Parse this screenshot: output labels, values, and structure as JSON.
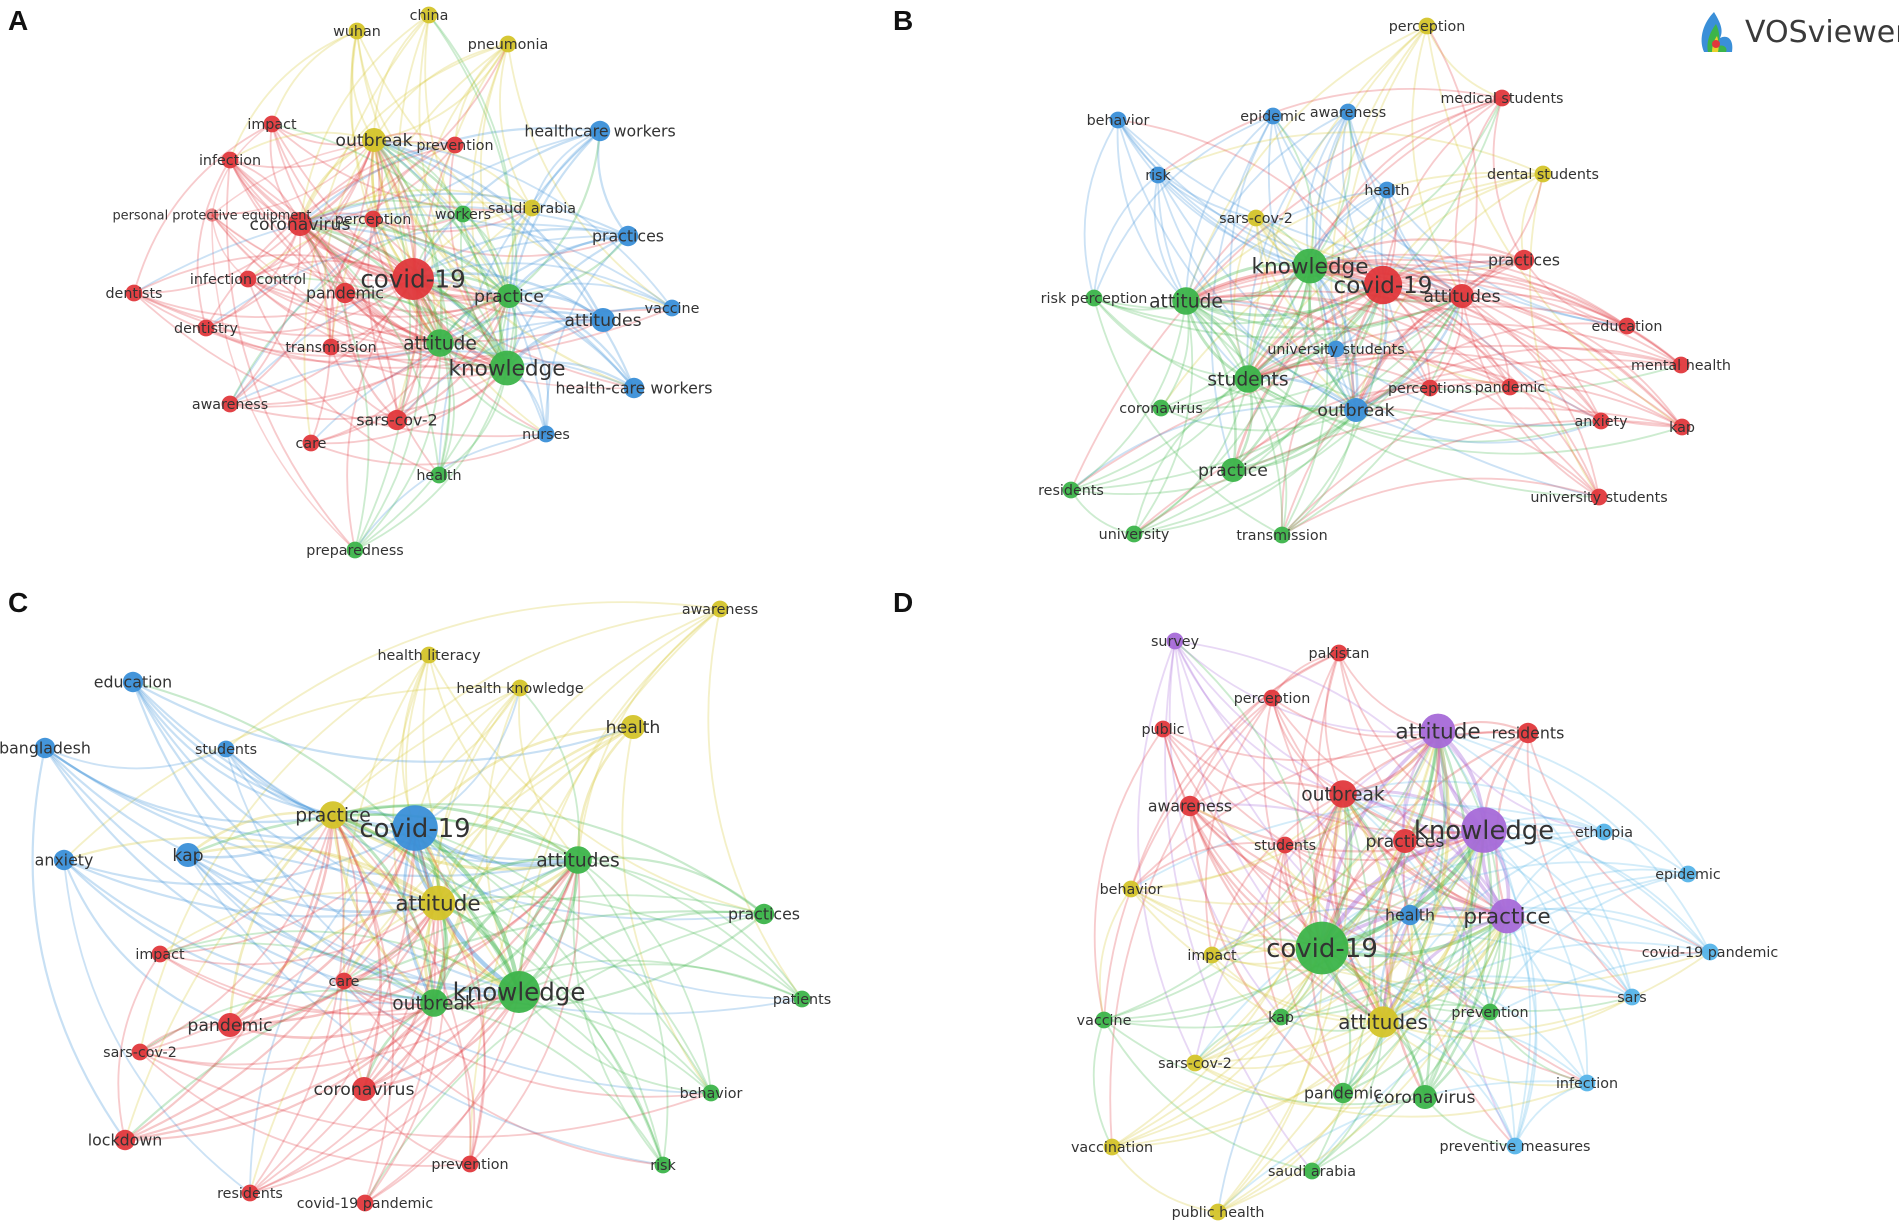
{
  "brand": {
    "name": "VOSviewer",
    "icon": "vosviewer-logo-icon"
  },
  "colors": {
    "red": "#e0383c",
    "green": "#3cb44a",
    "blue": "#3a8fd8",
    "yellow": "#d4c42a",
    "purple": "#a66ad8",
    "cyan": "#56b4e9"
  },
  "panels": [
    {
      "id": "A",
      "letter": "A",
      "nodes": [
        {
          "label": "wuhan",
          "c": "yellow",
          "w": 3
        },
        {
          "label": "china",
          "c": "yellow",
          "w": 3
        },
        {
          "label": "pneumonia",
          "c": "yellow",
          "w": 3
        },
        {
          "label": "impact",
          "c": "red",
          "w": 3
        },
        {
          "label": "outbreak",
          "c": "yellow",
          "w": 5
        },
        {
          "label": "prevention",
          "c": "red",
          "w": 3
        },
        {
          "label": "healthcare workers",
          "c": "blue",
          "w": 4
        },
        {
          "label": "infection",
          "c": "red",
          "w": 3
        },
        {
          "label": "personal protective equipment",
          "c": "red",
          "w": 2,
          "faint": true
        },
        {
          "label": "coronavirus",
          "c": "red",
          "w": 5
        },
        {
          "label": "perception",
          "c": "red",
          "w": 3
        },
        {
          "label": "workers",
          "c": "green",
          "w": 3
        },
        {
          "label": "saudi arabia",
          "c": "yellow",
          "w": 3
        },
        {
          "label": "practices",
          "c": "blue",
          "w": 4
        },
        {
          "label": "dentists",
          "c": "red",
          "w": 3
        },
        {
          "label": "infection control",
          "c": "red",
          "w": 3
        },
        {
          "label": "covid-19",
          "c": "red",
          "w": 10
        },
        {
          "label": "pandemic",
          "c": "red",
          "w": 4
        },
        {
          "label": "practice",
          "c": "green",
          "w": 5
        },
        {
          "label": "vaccine",
          "c": "blue",
          "w": 3
        },
        {
          "label": "dentistry",
          "c": "red",
          "w": 3
        },
        {
          "label": "attitudes",
          "c": "blue",
          "w": 5
        },
        {
          "label": "transmission",
          "c": "red",
          "w": 3
        },
        {
          "label": "attitude",
          "c": "green",
          "w": 6
        },
        {
          "label": "knowledge",
          "c": "green",
          "w": 8
        },
        {
          "label": "health-care workers",
          "c": "blue",
          "w": 4
        },
        {
          "label": "awareness",
          "c": "red",
          "w": 3
        },
        {
          "label": "sars-cov-2",
          "c": "red",
          "w": 4
        },
        {
          "label": "care",
          "c": "red",
          "w": 3
        },
        {
          "label": "nurses",
          "c": "blue",
          "w": 3
        },
        {
          "label": "health",
          "c": "green",
          "w": 3
        },
        {
          "label": "preparedness",
          "c": "green",
          "w": 3
        }
      ]
    },
    {
      "id": "B",
      "letter": "B",
      "nodes": [
        {
          "label": "perception",
          "c": "yellow",
          "w": 3
        },
        {
          "label": "medical students",
          "c": "red",
          "w": 3
        },
        {
          "label": "behavior",
          "c": "blue",
          "w": 3
        },
        {
          "label": "epidemic",
          "c": "blue",
          "w": 3
        },
        {
          "label": "awareness",
          "c": "blue",
          "w": 3
        },
        {
          "label": "dental students",
          "c": "yellow",
          "w": 3
        },
        {
          "label": "risk",
          "c": "blue",
          "w": 3
        },
        {
          "label": "health",
          "c": "blue",
          "w": 3
        },
        {
          "label": "sars-cov-2",
          "c": "yellow",
          "w": 3
        },
        {
          "label": "practices",
          "c": "red",
          "w": 4
        },
        {
          "label": "knowledge",
          "c": "green",
          "w": 8
        },
        {
          "label": "covid-19",
          "c": "red",
          "w": 9
        },
        {
          "label": "attitudes",
          "c": "red",
          "w": 5
        },
        {
          "label": "risk perception",
          "c": "green",
          "w": 3
        },
        {
          "label": "attitude",
          "c": "green",
          "w": 6
        },
        {
          "label": "education",
          "c": "red",
          "w": 3
        },
        {
          "label": "mental health",
          "c": "red",
          "w": 3
        },
        {
          "label": "university students",
          "c": "blue",
          "w": 3
        },
        {
          "label": "students",
          "c": "green",
          "w": 6
        },
        {
          "label": "perceptions",
          "c": "red",
          "w": 3
        },
        {
          "label": "pandemic",
          "c": "red",
          "w": 3
        },
        {
          "label": "coronavirus",
          "c": "green",
          "w": 3
        },
        {
          "label": "outbreak",
          "c": "blue",
          "w": 5
        },
        {
          "label": "anxiety",
          "c": "red",
          "w": 3
        },
        {
          "label": "kap",
          "c": "red",
          "w": 3
        },
        {
          "label": "practice",
          "c": "green",
          "w": 5
        },
        {
          "label": "residents",
          "c": "green",
          "w": 3
        },
        {
          "label": "university students",
          "c": "red",
          "w": 3
        },
        {
          "label": "university",
          "c": "green",
          "w": 3
        },
        {
          "label": "transmission",
          "c": "green",
          "w": 3
        }
      ]
    },
    {
      "id": "C",
      "letter": "C",
      "nodes": [
        {
          "label": "awareness",
          "c": "yellow",
          "w": 3
        },
        {
          "label": "health literacy",
          "c": "yellow",
          "w": 3
        },
        {
          "label": "education",
          "c": "blue",
          "w": 4
        },
        {
          "label": "health knowledge",
          "c": "yellow",
          "w": 3
        },
        {
          "label": "health",
          "c": "yellow",
          "w": 5
        },
        {
          "label": "bangladesh",
          "c": "blue",
          "w": 4
        },
        {
          "label": "students",
          "c": "blue",
          "w": 3
        },
        {
          "label": "practice",
          "c": "yellow",
          "w": 6
        },
        {
          "label": "covid-19",
          "c": "blue",
          "w": 11
        },
        {
          "label": "anxiety",
          "c": "blue",
          "w": 4
        },
        {
          "label": "kap",
          "c": "blue",
          "w": 5
        },
        {
          "label": "attitudes",
          "c": "green",
          "w": 6
        },
        {
          "label": "attitude",
          "c": "yellow",
          "w": 8
        },
        {
          "label": "practices",
          "c": "green",
          "w": 4
        },
        {
          "label": "impact",
          "c": "red",
          "w": 3
        },
        {
          "label": "care",
          "c": "red",
          "w": 3
        },
        {
          "label": "outbreak",
          "c": "green",
          "w": 6
        },
        {
          "label": "knowledge",
          "c": "green",
          "w": 10
        },
        {
          "label": "patients",
          "c": "green",
          "w": 3
        },
        {
          "label": "pandemic",
          "c": "red",
          "w": 5
        },
        {
          "label": "sars-cov-2",
          "c": "red",
          "w": 3
        },
        {
          "label": "coronavirus",
          "c": "red",
          "w": 5
        },
        {
          "label": "behavior",
          "c": "green",
          "w": 3
        },
        {
          "label": "lockdown",
          "c": "red",
          "w": 4
        },
        {
          "label": "prevention",
          "c": "red",
          "w": 3
        },
        {
          "label": "risk",
          "c": "green",
          "w": 3
        },
        {
          "label": "residents",
          "c": "red",
          "w": 3
        },
        {
          "label": "covid-19 pandemic",
          "c": "red",
          "w": 3
        }
      ]
    },
    {
      "id": "D",
      "letter": "D",
      "nodes": [
        {
          "label": "survey",
          "c": "purple",
          "w": 3
        },
        {
          "label": "pakistan",
          "c": "red",
          "w": 3
        },
        {
          "label": "perception",
          "c": "red",
          "w": 3
        },
        {
          "label": "public",
          "c": "red",
          "w": 3
        },
        {
          "label": "attitude",
          "c": "purple",
          "w": 8
        },
        {
          "label": "residents",
          "c": "red",
          "w": 4
        },
        {
          "label": "awareness",
          "c": "red",
          "w": 4
        },
        {
          "label": "outbreak",
          "c": "red",
          "w": 6
        },
        {
          "label": "knowledge",
          "c": "purple",
          "w": 11
        },
        {
          "label": "ethiopia",
          "c": "cyan",
          "w": 3
        },
        {
          "label": "students",
          "c": "red",
          "w": 3
        },
        {
          "label": "practices",
          "c": "red",
          "w": 5
        },
        {
          "label": "epidemic",
          "c": "cyan",
          "w": 3
        },
        {
          "label": "behavior",
          "c": "yellow",
          "w": 3
        },
        {
          "label": "health",
          "c": "blue",
          "w": 4
        },
        {
          "label": "practice",
          "c": "purple",
          "w": 8
        },
        {
          "label": "covid-19",
          "c": "green",
          "w": 13
        },
        {
          "label": "impact",
          "c": "yellow",
          "w": 3
        },
        {
          "label": "covid-19 pandemic",
          "c": "cyan",
          "w": 3
        },
        {
          "label": "sars",
          "c": "cyan",
          "w": 3
        },
        {
          "label": "vaccine",
          "c": "green",
          "w": 3
        },
        {
          "label": "kap",
          "c": "green",
          "w": 3
        },
        {
          "label": "attitudes",
          "c": "yellow",
          "w": 7
        },
        {
          "label": "prevention",
          "c": "green",
          "w": 3
        },
        {
          "label": "sars-cov-2",
          "c": "yellow",
          "w": 3
        },
        {
          "label": "infection",
          "c": "cyan",
          "w": 3
        },
        {
          "label": "pandemic",
          "c": "green",
          "w": 4
        },
        {
          "label": "coronavirus",
          "c": "green",
          "w": 5
        },
        {
          "label": "vaccination",
          "c": "yellow",
          "w": 3
        },
        {
          "label": "preventive measures",
          "c": "cyan",
          "w": 3
        },
        {
          "label": "saudi arabia",
          "c": "green",
          "w": 3
        },
        {
          "label": "public health",
          "c": "yellow",
          "w": 3
        }
      ]
    }
  ]
}
